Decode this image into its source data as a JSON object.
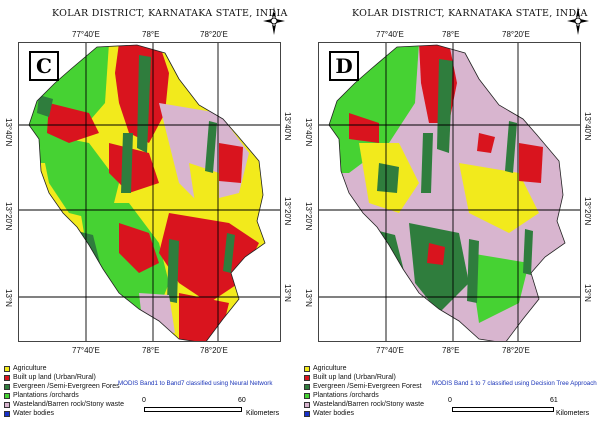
{
  "panels": [
    {
      "title": "KOLAR DISTRICT, KARNATAKA STATE, INDIA",
      "badge": "C",
      "lon_labels": [
        "77°40'E",
        "78°E",
        "78°20'E"
      ],
      "lat_labels": [
        "13°40'N",
        "13°20'N",
        "13°N"
      ],
      "caption": "MODIS Band1 to Band7 classified using Neural Network",
      "scale": {
        "start": "0",
        "end": "60",
        "unit": "Kilometers"
      },
      "legend": [
        {
          "label": "Agriculture",
          "color": "#f2ea1c"
        },
        {
          "label": "Built up land (Urban/Rural)",
          "color": "#d9141e"
        },
        {
          "label": "Evergreen /Semi-Evergreen Fores",
          "color": "#2f7d3d"
        },
        {
          "label": "Plantations /orchards",
          "color": "#46d233"
        },
        {
          "label": "Wasteland/Barren rock/Stony waste",
          "color": "#d8b5cf"
        },
        {
          "label": "Water bodies",
          "color": "#1730c8"
        }
      ]
    },
    {
      "title": "KOLAR DISTRICT, KARNATAKA STATE, INDIA",
      "badge": "D",
      "lon_labels": [
        "77°40'E",
        "78°E",
        "78°20'E"
      ],
      "lat_labels": [
        "13°40'N",
        "13°20'N",
        "13°N"
      ],
      "caption": "MODIS Band 1 to 7 classified using Decision Tree Approach",
      "scale": {
        "start": "0",
        "end": "61",
        "unit": "Kilometers"
      },
      "legend": [
        {
          "label": "Agriculture",
          "color": "#f2ea1c"
        },
        {
          "label": "Built up land (Urban/Rural)",
          "color": "#d9141e"
        },
        {
          "label": "Evergreen /Semi-Evergreen Forest",
          "color": "#2f7d3d"
        },
        {
          "label": "Plantations /orchards",
          "color": "#46d233"
        },
        {
          "label": "Wasteland/Barren rock/Stony waste",
          "color": "#d8b5cf"
        },
        {
          "label": "Water bodies",
          "color": "#1730c8"
        }
      ]
    }
  ]
}
